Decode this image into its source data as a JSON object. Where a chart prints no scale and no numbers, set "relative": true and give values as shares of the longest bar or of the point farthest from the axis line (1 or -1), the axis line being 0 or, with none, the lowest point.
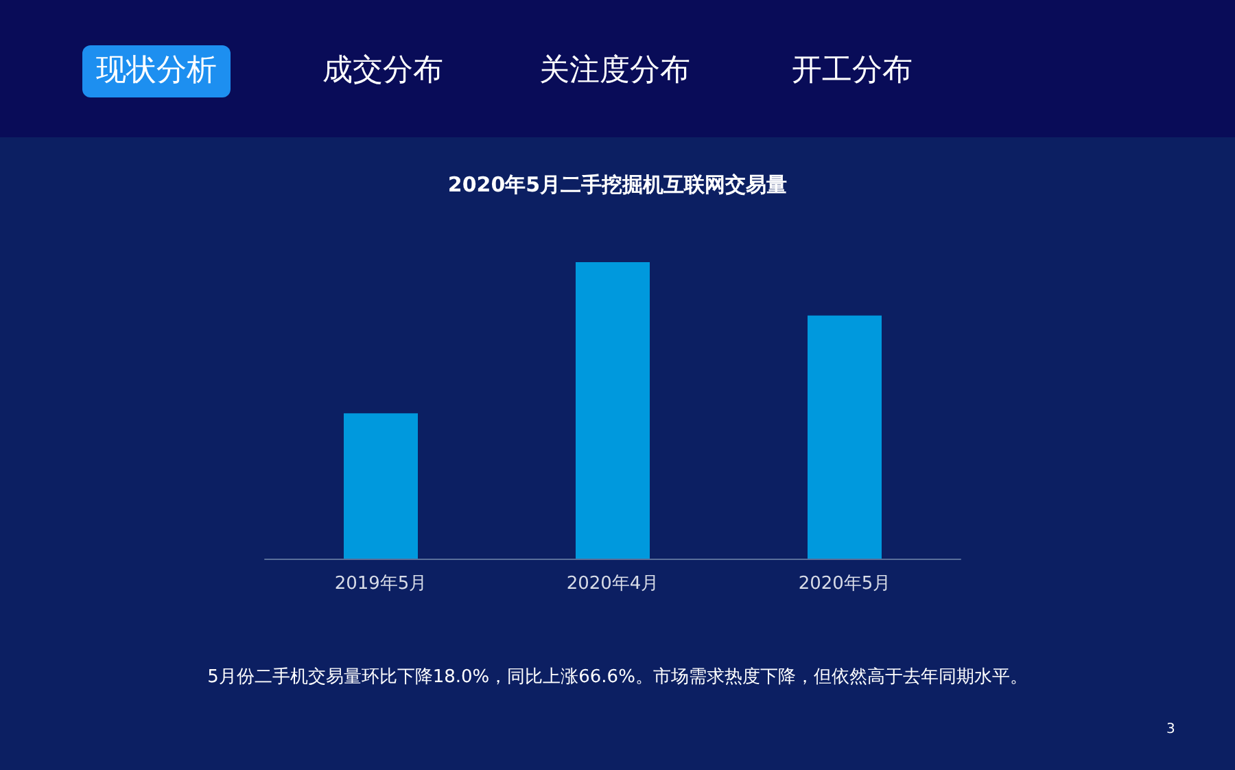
{
  "chart_data": {
    "type": "bar",
    "relative": true,
    "title": "2020年5月二手挖掘机互联网交易量",
    "categories": [
      "2019年5月",
      "2020年4月",
      "2020年5月"
    ],
    "values": [
      0.49,
      1,
      0.82
    ],
    "color": "#0099dd",
    "annotations": [
      "现状分析",
      "成交分布",
      "关注度分布",
      "开工分布",
      "5月份二手机交易量环比下降18.0%，同比上涨66.6%。市场需求热度下降，但依然高于去年同期水平。",
      "3"
    ]
  }
}
